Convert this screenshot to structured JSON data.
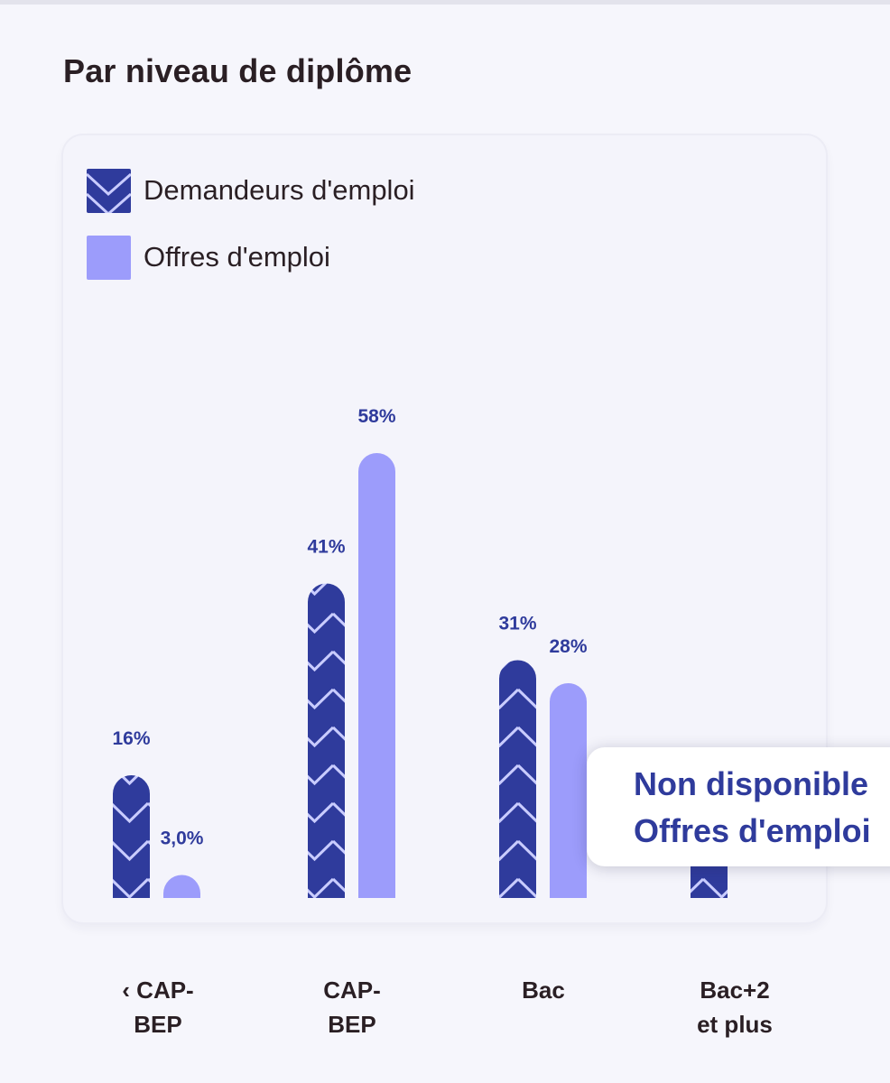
{
  "page": {
    "title": "Par niveau de diplôme"
  },
  "legend": {
    "series_1": "Demandeurs d'emploi",
    "series_2": "Offres d'emploi"
  },
  "tooltip": {
    "line1": "Non disponible",
    "line2": "Offres d'emploi"
  },
  "colors": {
    "demandeurs": "#2f3b9c",
    "offres": "#9c9cfb",
    "pattern_stroke": "#c9ccff",
    "label_color": "#2f3b9c"
  },
  "chart_data": {
    "type": "bar",
    "title": "Par niveau de diplôme",
    "categories": [
      "‹ CAP-\nBEP",
      "CAP-\nBEP",
      "Bac",
      "Bac+2\net plus"
    ],
    "series": [
      {
        "name": "Demandeurs d'emploi",
        "values": [
          16,
          41,
          31,
          12
        ],
        "labels": [
          "16%",
          "41%",
          "31%",
          ""
        ]
      },
      {
        "name": "Offres d'emploi",
        "values": [
          3.0,
          58,
          28,
          null
        ],
        "labels": [
          "3,0%",
          "58%",
          "28%",
          ""
        ]
      }
    ],
    "ylim": [
      0,
      60
    ],
    "grid": false,
    "legend_position": "top-left"
  }
}
